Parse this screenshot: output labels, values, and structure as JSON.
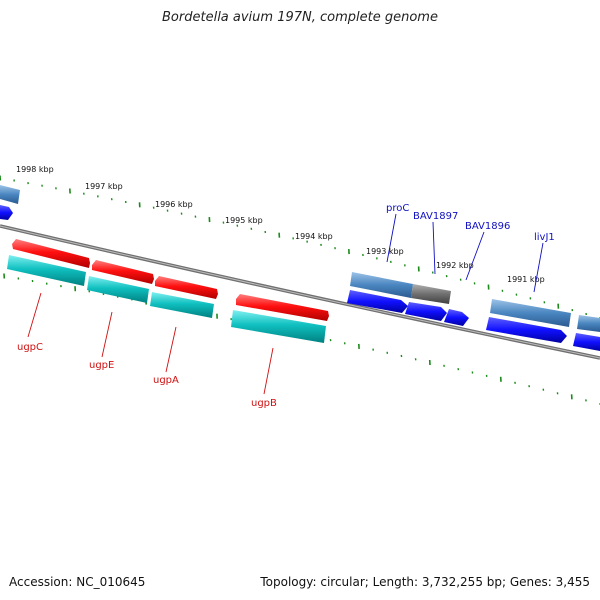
{
  "title": "Bordetella avium 197N, complete genome",
  "accession": "Accession: NC_010645",
  "summary": "Topology: circular; Length: 3,732,255 bp; Genes: 3,455",
  "ruler_labels": [
    "1998 kbp",
    "1997 kbp",
    "1996 kbp",
    "1995 kbp",
    "1994 kbp",
    "1993 kbp",
    "1992 kbp",
    "1991 kbp"
  ],
  "genes_forward": [
    "ugpC",
    "ugpE",
    "ugpA",
    "ugpB"
  ],
  "genes_reverse": [
    "proC",
    "BAV1897",
    "BAV1896",
    "livJ1"
  ],
  "colors": {
    "forward_gene": "#ff2020",
    "forward_cds": "#18c8c8",
    "reverse_gene": "#4a86c0",
    "reverse_cds": "#1010ff",
    "pseudo": "#707070",
    "tick": "#1a8a1a",
    "backbone": "#808080",
    "label_forward": "#d01010",
    "label_reverse": "#1010c0"
  }
}
